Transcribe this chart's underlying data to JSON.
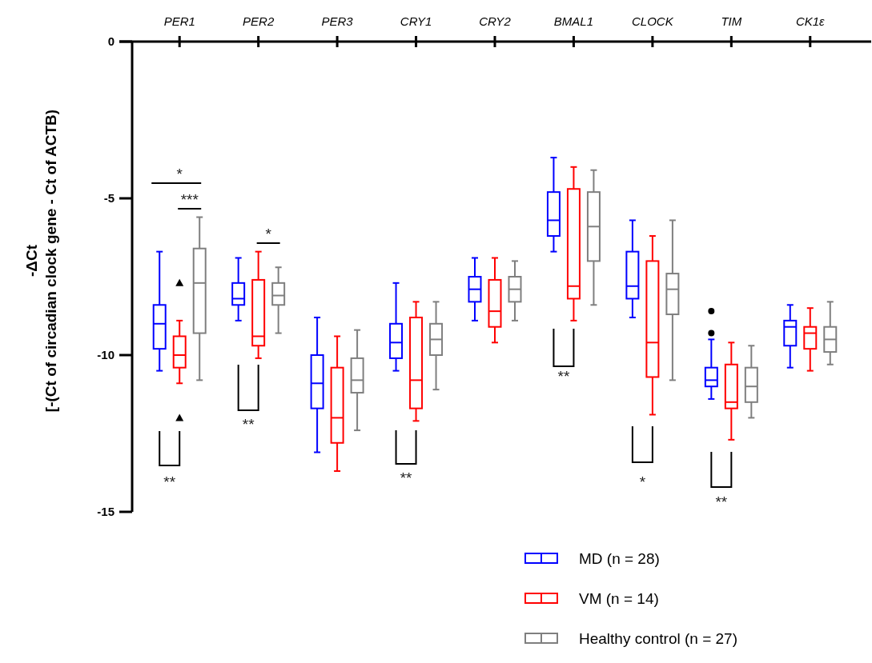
{
  "chart_data": {
    "type": "box",
    "ylabel": "-ΔCt\n[-(Ct of circadian clock gene - Ct of ACTB)",
    "categories": [
      "PER1",
      "PER2",
      "PER3",
      "CRY1",
      "CRY2",
      "BMAL1",
      "CLOCK",
      "TIM",
      "CK1ε"
    ],
    "ylim": [
      -15,
      0
    ],
    "yticks": [
      0,
      -5,
      -10,
      -15
    ],
    "legend": "bottom right",
    "grid": false,
    "series": [
      {
        "name": "MD (n = 28)",
        "color": "#0000ff",
        "marker": "circle",
        "boxes": [
          {
            "low": -10.5,
            "q1": -9.8,
            "median": -9.0,
            "q3": -8.4,
            "high": -6.7
          },
          {
            "low": -8.9,
            "q1": -8.4,
            "median": -8.2,
            "q3": -7.7,
            "high": -6.9
          },
          {
            "low": -13.1,
            "q1": -11.7,
            "median": -10.9,
            "q3": -10.0,
            "high": -8.8
          },
          {
            "low": -10.5,
            "q1": -10.1,
            "median": -9.6,
            "q3": -9.0,
            "high": -7.7
          },
          {
            "low": -8.9,
            "q1": -8.3,
            "median": -7.9,
            "q3": -7.5,
            "high": -6.9
          },
          {
            "low": -6.7,
            "q1": -6.2,
            "median": -5.7,
            "q3": -4.8,
            "high": -3.7
          },
          {
            "low": -8.8,
            "q1": -8.2,
            "median": -7.8,
            "q3": -6.7,
            "high": -5.7
          },
          {
            "low": -11.4,
            "q1": -11.0,
            "median": -10.8,
            "q3": -10.4,
            "high": -9.5,
            "outliers": [
              -8.6,
              -9.3
            ]
          },
          {
            "low": -10.4,
            "q1": -9.7,
            "median": -9.1,
            "q3": -8.9,
            "high": -8.4
          }
        ]
      },
      {
        "name": "VM (n = 14)",
        "color": "#ff0000",
        "marker": "triangle",
        "boxes": [
          {
            "low": -10.9,
            "q1": -10.4,
            "median": -10.0,
            "q3": -9.4,
            "high": -8.9,
            "outliers": [
              -7.7,
              -12.0
            ]
          },
          {
            "low": -10.1,
            "q1": -9.7,
            "median": -9.4,
            "q3": -7.6,
            "high": -6.7
          },
          {
            "low": -13.7,
            "q1": -12.8,
            "median": -12.0,
            "q3": -10.4,
            "high": -9.4
          },
          {
            "low": -12.1,
            "q1": -11.7,
            "median": -10.8,
            "q3": -8.8,
            "high": -8.3
          },
          {
            "low": -9.6,
            "q1": -9.1,
            "median": -8.6,
            "q3": -7.6,
            "high": -6.9
          },
          {
            "low": -8.9,
            "q1": -8.2,
            "median": -7.8,
            "q3": -4.7,
            "high": -4.0
          },
          {
            "low": -11.9,
            "q1": -10.7,
            "median": -9.6,
            "q3": -7.0,
            "high": -6.2
          },
          {
            "low": -12.7,
            "q1": -11.7,
            "median": -11.5,
            "q3": -10.3,
            "high": -9.6
          },
          {
            "low": -10.5,
            "q1": -9.8,
            "median": -9.3,
            "q3": -9.1,
            "high": -8.5
          }
        ]
      },
      {
        "name": "Healthy control (n = 27)",
        "color": "#7f7f7f",
        "boxes": [
          {
            "low": -10.8,
            "q1": -9.3,
            "median": -7.7,
            "q3": -6.6,
            "high": -5.6
          },
          {
            "low": -9.3,
            "q1": -8.4,
            "median": -8.1,
            "q3": -7.7,
            "high": -7.2
          },
          {
            "low": -12.4,
            "q1": -11.2,
            "median": -10.8,
            "q3": -10.1,
            "high": -9.2
          },
          {
            "low": -11.1,
            "q1": -10.0,
            "median": -9.5,
            "q3": -9.0,
            "high": -8.3
          },
          {
            "low": -8.9,
            "q1": -8.3,
            "median": -7.9,
            "q3": -7.5,
            "high": -7.0
          },
          {
            "low": -8.4,
            "q1": -7.0,
            "median": -5.9,
            "q3": -4.8,
            "high": -4.1
          },
          {
            "low": -10.8,
            "q1": -8.7,
            "median": -7.9,
            "q3": -7.4,
            "high": -5.7
          },
          {
            "low": -12.0,
            "q1": -11.5,
            "median": -11.0,
            "q3": -10.4,
            "high": -9.7
          },
          {
            "low": -10.3,
            "q1": -9.9,
            "median": -9.5,
            "q3": -9.1,
            "high": -8.3
          }
        ]
      }
    ],
    "annotations": [
      "*",
      "***",
      "*",
      "**",
      "**",
      "**",
      "**",
      "*",
      "**"
    ]
  }
}
